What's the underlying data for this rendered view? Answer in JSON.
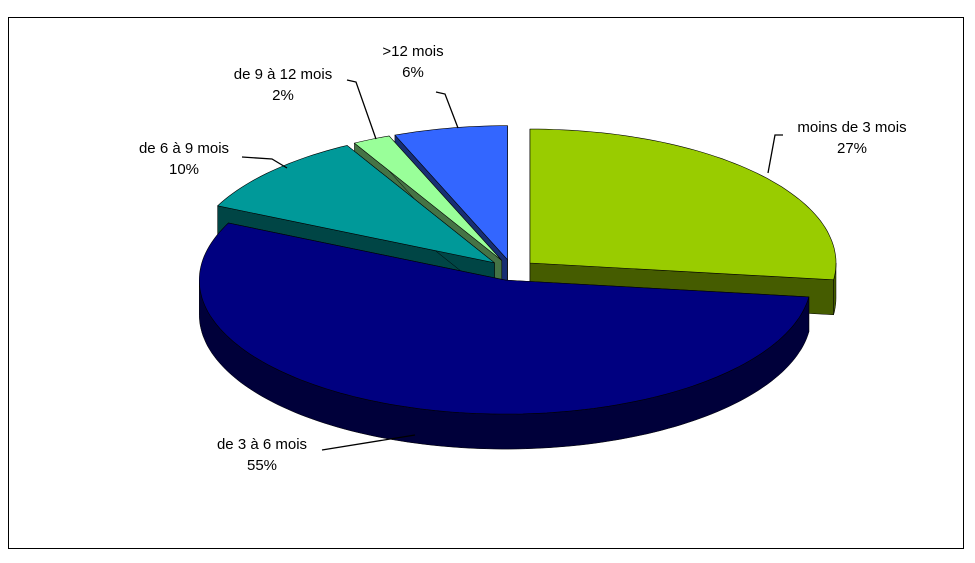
{
  "chart_data": {
    "type": "pie3d",
    "categories": [
      "moins de 3 mois",
      "de 3 à 6 mois",
      "de 6 à 9 mois",
      "de 9 à 12 mois",
      ">12 mois"
    ],
    "values": [
      27,
      55,
      10,
      2,
      6
    ],
    "value_labels": [
      "27%",
      "55%",
      "10%",
      "2%",
      "6%"
    ],
    "colors": [
      "#99cc00",
      "#000080",
      "#009999",
      "#99ff99",
      "#3366ff"
    ]
  }
}
